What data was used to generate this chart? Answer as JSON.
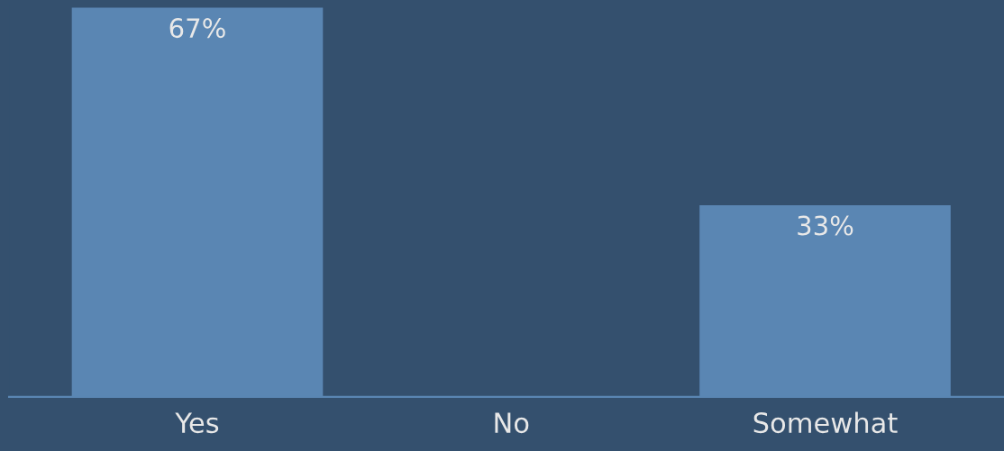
{
  "chart_data": {
    "type": "bar",
    "categories": [
      "Yes",
      "No",
      "Somewhat"
    ],
    "values": [
      67,
      0,
      33
    ],
    "value_labels": [
      "67%",
      null,
      "33%"
    ],
    "color": "#5a86b3",
    "ylim": [
      0,
      68
    ],
    "grid": false,
    "legend": false
  }
}
